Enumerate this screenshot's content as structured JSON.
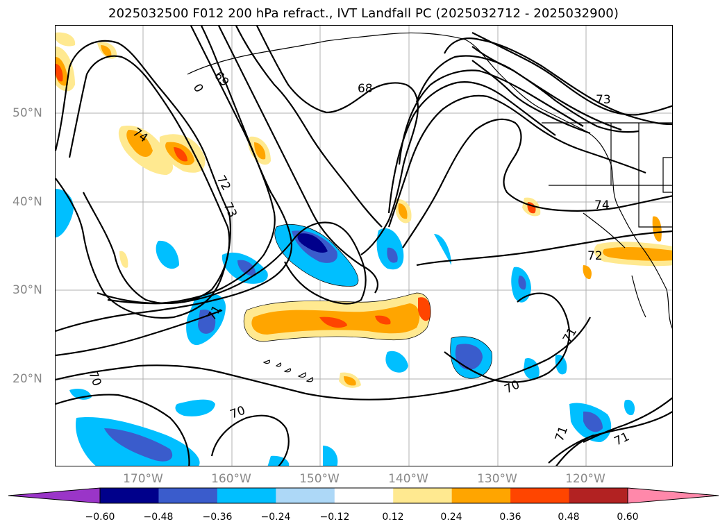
{
  "title": "2025032500 F012 200 hPa refract., IVT Landfall PC (2025032712 - 2025032900)",
  "lat_labels": [
    "50°N",
    "40°N",
    "30°N",
    "20°N"
  ],
  "lon_labels": [
    "170°W",
    "160°W",
    "150°W",
    "140°W",
    "130°W",
    "120°W"
  ],
  "colorbar": {
    "ticks": [
      "−0.60",
      "−0.48",
      "−0.36",
      "−0.24",
      "−0.12",
      "0.12",
      "0.24",
      "0.36",
      "0.48",
      "0.60"
    ],
    "colors": [
      "#9a35c8",
      "#00008b",
      "#3a5ccc",
      "#00bfff",
      "#add8f7",
      "#ffffff",
      "#ffe990",
      "#ffa500",
      "#ff4500",
      "#b22222",
      "#ff88aa"
    ]
  },
  "contour_labels": [
    "69",
    "0",
    "68",
    "73",
    "74",
    "72",
    "73",
    "74",
    "72",
    "71",
    "71",
    "70",
    "70",
    "70",
    "71",
    "71"
  ],
  "legend_colors": {
    "neg_dark": "#00008b",
    "neg_mid": "#3a5ccc",
    "neg_light": "#00bfff",
    "neg_pale": "#add8f7",
    "pos_pale": "#ffe990",
    "pos_light": "#ffa500",
    "pos_mid": "#ff4500"
  }
}
